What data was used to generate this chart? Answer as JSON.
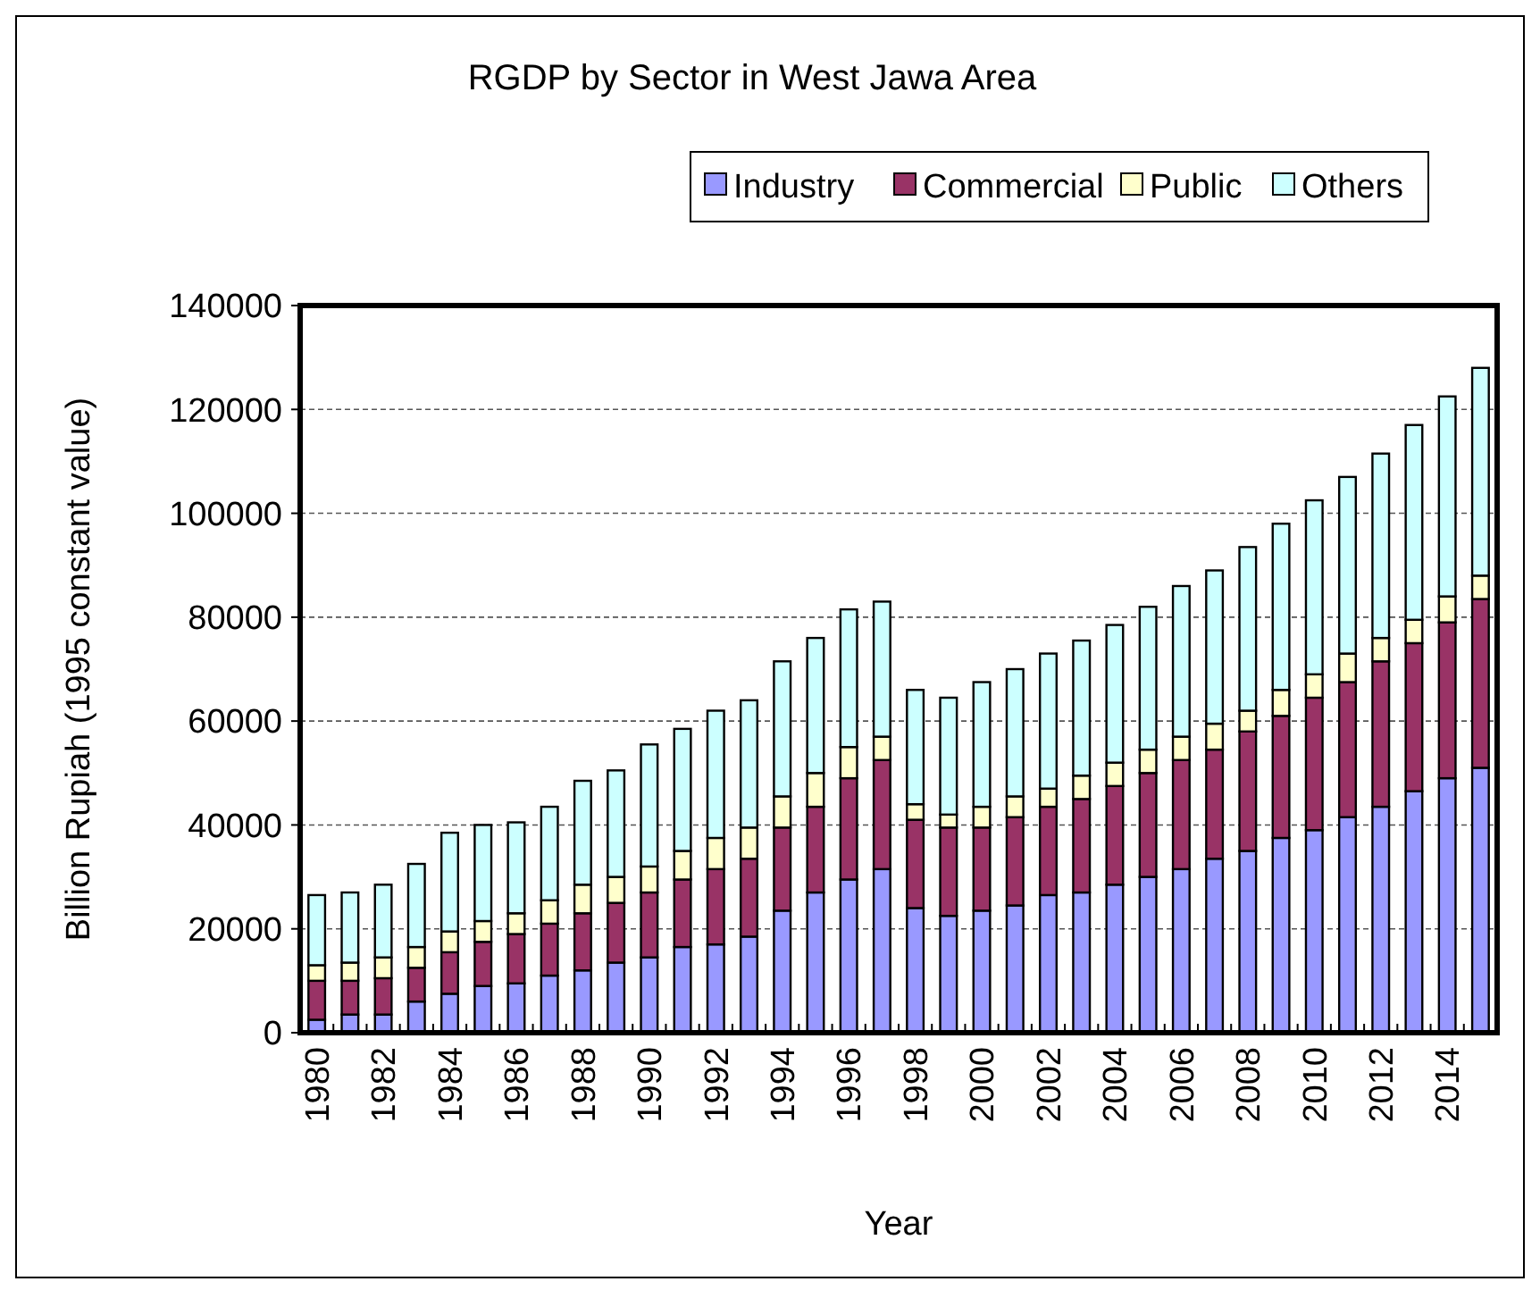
{
  "chart_data": {
    "type": "bar",
    "title": "RGDP by Sector in West Jawa Area",
    "xlabel": "Year",
    "ylabel": "Billion Rupiah (1995 constant value)",
    "categories": [
      "1980",
      null,
      "1982",
      null,
      "1984",
      null,
      "1986",
      null,
      "1988",
      null,
      "1990",
      null,
      "1992",
      null,
      "1994",
      null,
      "1996",
      null,
      "1998",
      null,
      "2000",
      null,
      "2002",
      null,
      "2004",
      null,
      "2006",
      null,
      "2008",
      null,
      "2010",
      null,
      "2012",
      null,
      "2014",
      null
    ],
    "stacked": true,
    "ylim": [
      0,
      140000
    ],
    "yticks": [
      0,
      20000,
      40000,
      60000,
      80000,
      100000,
      120000,
      140000
    ],
    "grid": "y",
    "legend": "top",
    "series": [
      {
        "name": "Industry",
        "color": "#9999ff",
        "values": [
          2500,
          3500,
          3500,
          6000,
          7500,
          9000,
          9500,
          11000,
          12000,
          13500,
          14500,
          16500,
          17000,
          18500,
          23500,
          27000,
          29500,
          31500,
          24000,
          22500,
          23500,
          24500,
          26500,
          27000,
          28500,
          30000,
          31500,
          33500,
          35000,
          37500,
          39000,
          41500,
          43500,
          46500,
          49000,
          51000
        ]
      },
      {
        "name": "Commercial",
        "color": "#993366",
        "values": [
          7500,
          6500,
          7000,
          6500,
          8000,
          8500,
          9500,
          10000,
          11000,
          11500,
          12500,
          13000,
          14500,
          15000,
          16000,
          16500,
          19500,
          21000,
          17000,
          17000,
          16000,
          17000,
          17000,
          18000,
          19000,
          20000,
          21000,
          21000,
          23000,
          23500,
          25500,
          26000,
          28000,
          28500,
          30000,
          32500
        ]
      },
      {
        "name": "Public",
        "color": "#ffffcc",
        "values": [
          3000,
          3500,
          4000,
          4000,
          4000,
          4000,
          4000,
          4500,
          5500,
          5000,
          5000,
          5500,
          6000,
          6000,
          6000,
          6500,
          6000,
          4500,
          3000,
          2500,
          4000,
          4000,
          3500,
          4500,
          4500,
          4500,
          4500,
          5000,
          4000,
          5000,
          4500,
          5500,
          4500,
          4500,
          5000,
          4500
        ]
      },
      {
        "name": "Others",
        "color": "#ccffff",
        "values": [
          13500,
          13500,
          14000,
          16000,
          19000,
          18500,
          17500,
          18000,
          20000,
          20500,
          23500,
          23500,
          24500,
          24500,
          26000,
          26000,
          26500,
          26000,
          22000,
          22500,
          24000,
          24500,
          26000,
          26000,
          26500,
          27500,
          29000,
          29500,
          31500,
          32000,
          33500,
          34000,
          35500,
          37500,
          38500,
          40000
        ]
      }
    ]
  }
}
